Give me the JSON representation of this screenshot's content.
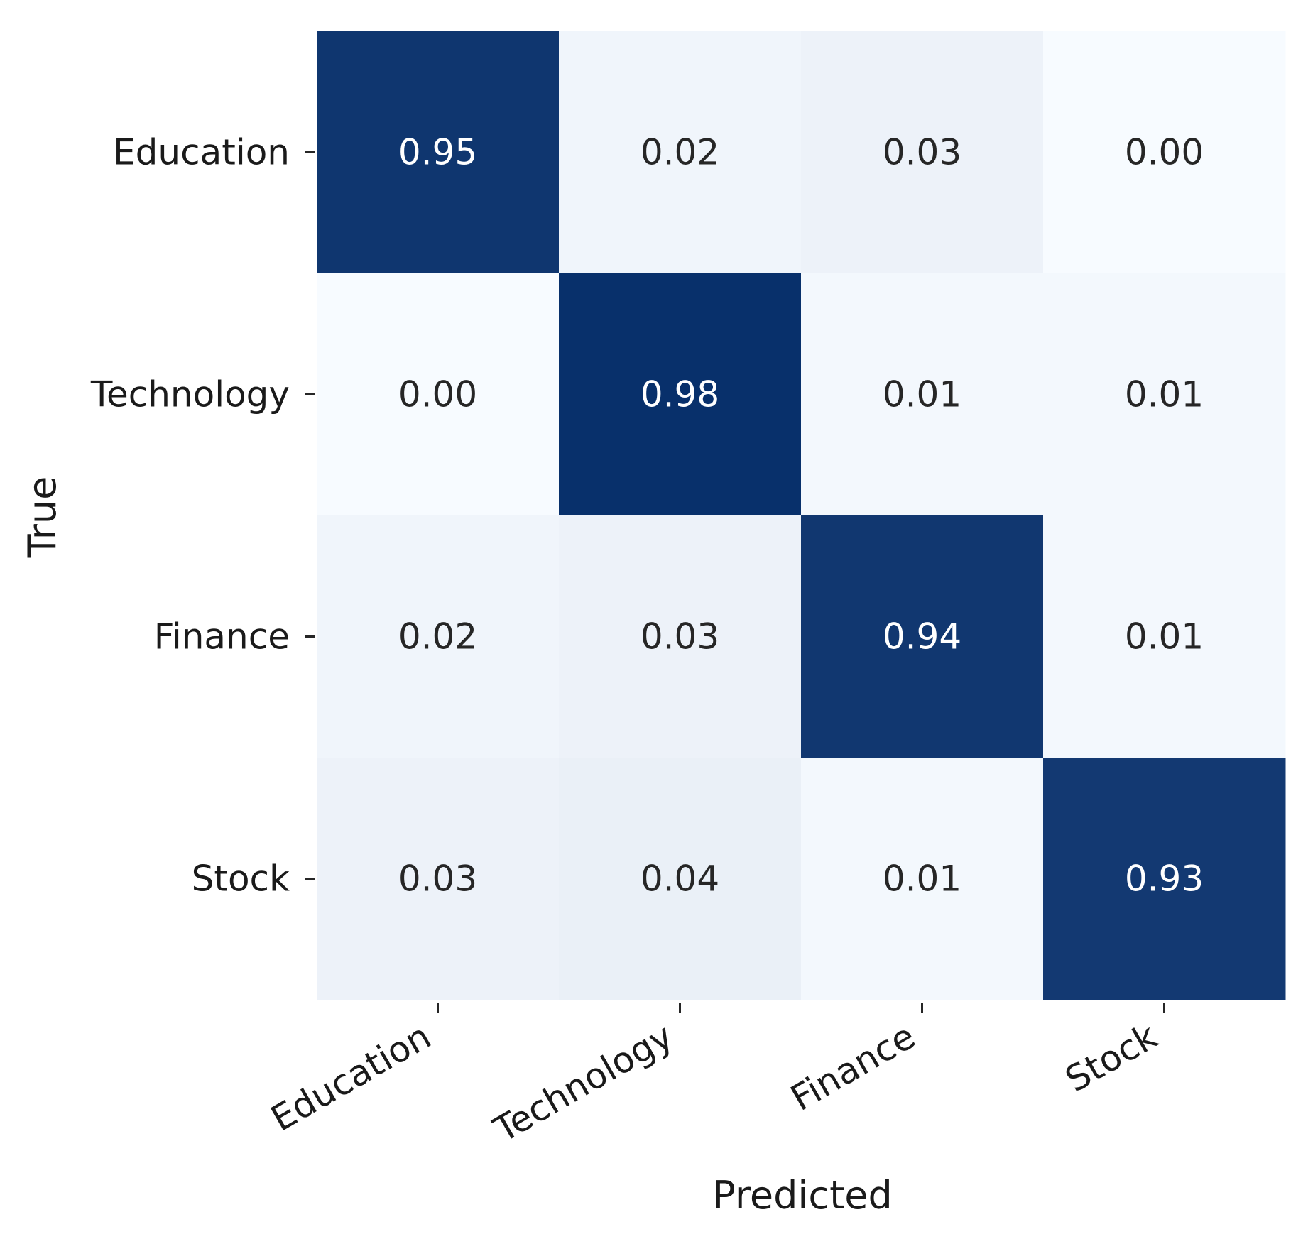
{
  "chart_data": {
    "type": "heatmap",
    "title": "",
    "xlabel": "Predicted",
    "ylabel": "True",
    "x_categories": [
      "Education",
      "Technology",
      "Finance",
      "Stock"
    ],
    "y_categories": [
      "Education",
      "Technology",
      "Finance",
      "Stock"
    ],
    "values": [
      [
        0.95,
        0.02,
        0.03,
        0.0
      ],
      [
        0.0,
        0.98,
        0.01,
        0.01
      ],
      [
        0.02,
        0.03,
        0.94,
        0.01
      ],
      [
        0.03,
        0.04,
        0.01,
        0.93
      ]
    ],
    "value_format": "0.00",
    "colormap": "Blues",
    "colorbar": false,
    "grid": false,
    "colors": {
      "low": "#f7fbff",
      "high": "#08306b",
      "text_dark": "#262626",
      "text_light": "#ffffff"
    }
  }
}
